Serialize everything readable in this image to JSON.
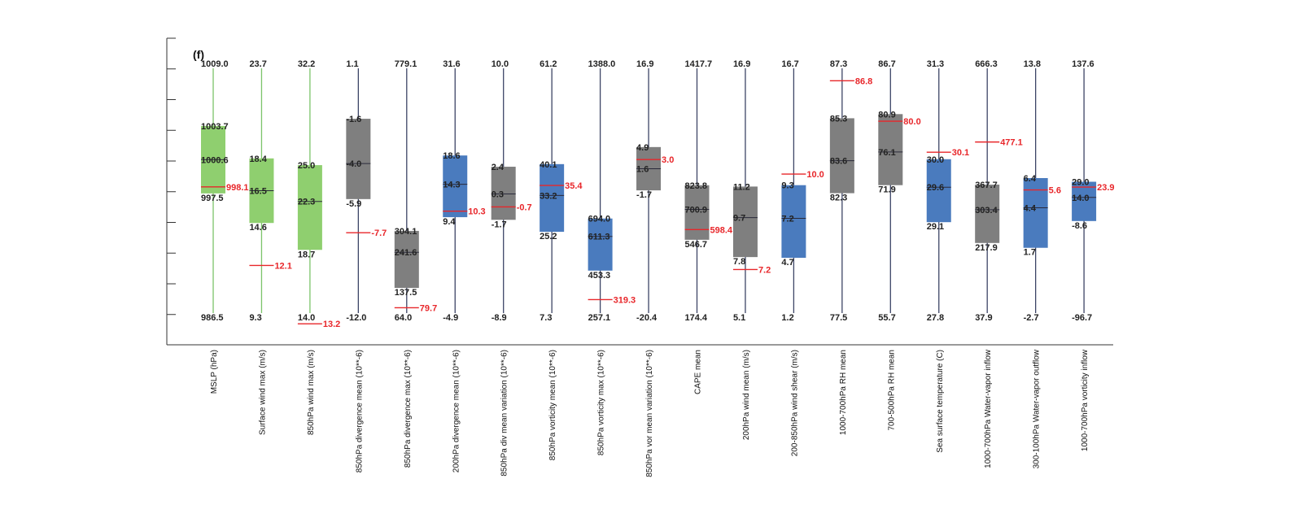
{
  "chart_data": {
    "type": "boxplot",
    "title": "(f)",
    "grid": false,
    "colors": {
      "green": "#8fcf6f",
      "gray": "#7f7f7f",
      "blue": "#4a7bbe",
      "red_marker": "#e8262a",
      "green_whisker": "#7cc46a",
      "dark_whisker": "#3d4566"
    },
    "boxes": [
      {
        "category": "MSLP (hPa)",
        "color": "green",
        "max": "1009.0",
        "q3": "1003.7",
        "median": "1000.6",
        "q1": "997.5",
        "min": "986.5",
        "marker": "998.1"
      },
      {
        "category": "Surface wind max (m/s)",
        "color": "green",
        "max": "23.7",
        "q3": "18.4",
        "median": "16.5",
        "q1": "14.6",
        "min": "9.3",
        "marker": "12.1"
      },
      {
        "category": "850hPa wind max (m/s)",
        "color": "green",
        "max": "32.2",
        "q3": "25.0",
        "median": "22.3",
        "q1": "18.7",
        "min": "14.0",
        "marker": "13.2"
      },
      {
        "category": "850hPa divergence mean (10**-6)",
        "color": "gray",
        "max": "1.1",
        "q3": "-1.6",
        "median": "-4.0",
        "q1": "-5.9",
        "min": "-12.0",
        "marker": "-7.7"
      },
      {
        "category": "850hPa divergence max (10**-6)",
        "color": "gray",
        "max": "779.1",
        "q3": "304.1",
        "median": "241.6",
        "q1": "137.5",
        "min": "64.0",
        "marker": "79.7"
      },
      {
        "category": "200hPa divergence mean (10**-6)",
        "color": "blue",
        "max": "31.6",
        "q3": "18.6",
        "median": "14.3",
        "q1": "9.4",
        "min": "-4.9",
        "marker": "10.3"
      },
      {
        "category": "850hPa div mean variation (10**-6)",
        "color": "gray",
        "max": "10.0",
        "q3": "2.4",
        "median": "0.3",
        "q1": "-1.7",
        "min": "-8.9",
        "marker": "-0.7"
      },
      {
        "category": "850hPa vorticity mean (10**-6)",
        "color": "blue",
        "max": "61.2",
        "q3": "40.1",
        "median": "33.2",
        "q1": "25.2",
        "min": "7.3",
        "marker": "35.4"
      },
      {
        "category": "850hPa vorticity max (10**-6)",
        "color": "blue",
        "max": "1388.0",
        "q3": "694.0",
        "median": "611.3",
        "q1": "453.3",
        "min": "257.1",
        "marker": "319.3"
      },
      {
        "category": "850hPa vor mean variation (10**-6)",
        "color": "gray",
        "max": "16.9",
        "q3": "4.9",
        "median": "1.6",
        "q1": "-1.7",
        "min": "-20.4",
        "marker": "3.0"
      },
      {
        "category": "CAPE mean",
        "color": "gray",
        "max": "1417.7",
        "q3": "823.8",
        "median": "700.9",
        "q1": "546.7",
        "min": "174.4",
        "marker": "598.4"
      },
      {
        "category": "200hPa wind mean (m/s)",
        "color": "gray",
        "max": "16.9",
        "q3": "11.2",
        "median": "9.7",
        "q1": "7.8",
        "min": "5.1",
        "marker": "7.2"
      },
      {
        "category": "200-850hPa wind shear (m/s)",
        "color": "blue",
        "max": "16.7",
        "q3": "9.3",
        "median": "7.2",
        "q1": "4.7",
        "min": "1.2",
        "marker": "10.0"
      },
      {
        "category": "1000-700hPa RH mean",
        "color": "gray",
        "max": "87.3",
        "q3": "85.3",
        "median": "83.6",
        "q1": "82.3",
        "min": "77.5",
        "marker": "86.8"
      },
      {
        "category": "700-500hPa RH mean",
        "color": "gray",
        "max": "86.7",
        "q3": "80.9",
        "median": "76.1",
        "q1": "71.9",
        "min": "55.7",
        "marker": "80.0"
      },
      {
        "category": "Sea surface temperature (C)",
        "color": "blue",
        "max": "31.3",
        "q3": "30.0",
        "median": "29.6",
        "q1": "29.1",
        "min": "27.8",
        "marker": "30.1"
      },
      {
        "category": "1000-700hPa Water-vapor inflow",
        "color": "gray",
        "max": "666.3",
        "q3": "367.7",
        "median": "303.4",
        "q1": "217.9",
        "min": "37.9",
        "marker": "477.1"
      },
      {
        "category": "300-100hPa Water-vapor outflow",
        "color": "blue",
        "max": "13.8",
        "q3": "6.4",
        "median": "4.4",
        "q1": "1.7",
        "min": "-2.7",
        "marker": "5.6"
      },
      {
        "category": "1000-700hPa vorticity inflow",
        "color": "blue",
        "max": "137.6",
        "q3": "29.0",
        "median": "14.0",
        "q1": "-8.6",
        "min": "-96.7",
        "marker": "23.9"
      }
    ]
  }
}
